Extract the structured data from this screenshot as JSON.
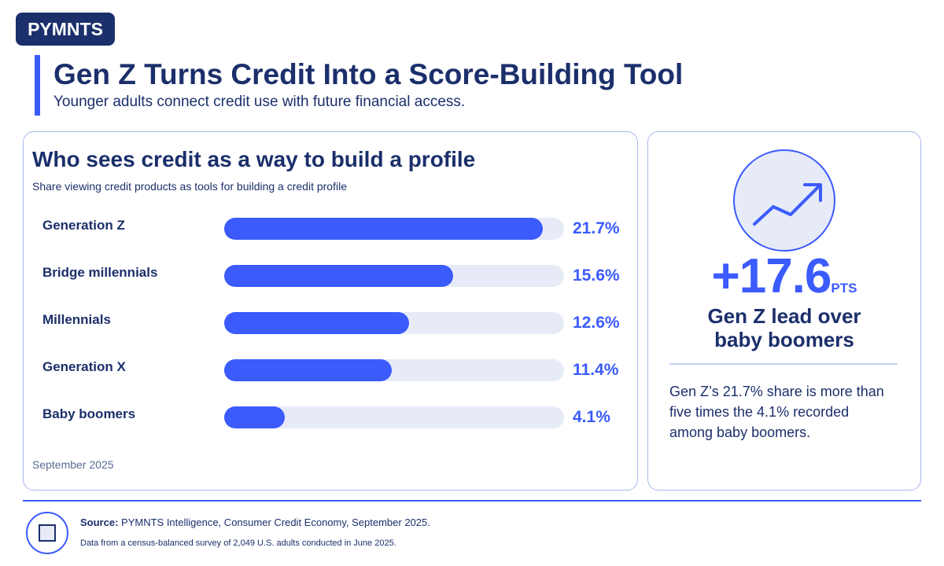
{
  "brand": "PYMNTS",
  "header": {
    "title": "Gen Z Turns Credit Into a Score-Building Tool",
    "subtitle": "Younger adults connect credit use with future financial access."
  },
  "chart_data": {
    "type": "bar",
    "orientation": "horizontal",
    "title": "Who sees credit as a way to build a profile",
    "subtitle": "Share viewing credit products as tools for building a credit profile",
    "categories": [
      "Generation Z",
      "Bridge millennials",
      "Millennials",
      "Generation X",
      "Baby boomers"
    ],
    "values": [
      21.7,
      15.6,
      12.6,
      11.4,
      4.1
    ],
    "value_labels": [
      "21.7%",
      "15.6%",
      "12.6%",
      "11.4%",
      "4.1%"
    ],
    "color": "#3b5bfd",
    "track_color": "#e7ebf8",
    "xlim": [
      0,
      23.15
    ],
    "date": "September 2025"
  },
  "callout": {
    "value": "+17.6",
    "unit": "PTS",
    "label": "Gen Z lead over baby boomers",
    "text": "Gen Z’s 21.7% share is more than five times the 4.1% recorded among baby boomers."
  },
  "footer": {
    "source_label": "Source:",
    "source": "PYMNTS Intelligence, Consumer Credit Economy, September 2025.",
    "note": "Data from a census-balanced survey of 2,049 U.S. adults conducted in June 2025."
  }
}
